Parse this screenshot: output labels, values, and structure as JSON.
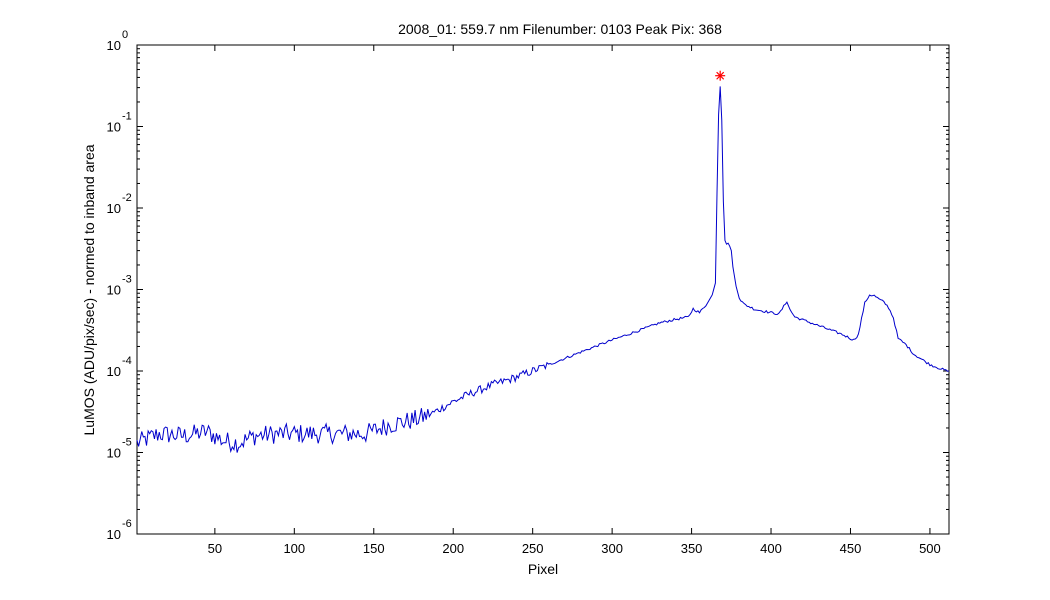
{
  "chart_data": {
    "type": "line",
    "title": "2008_01: 559.7 nm  Filenumber: 0103 Peak Pix: 368",
    "xlabel": "Pixel",
    "ylabel": "LuMOS (ADU/pix/sec) - normed to inband area",
    "xlim": [
      1,
      512
    ],
    "ylim": [
      1e-06,
      1
    ],
    "yscale": "log",
    "grid": false,
    "xticks": [
      50,
      100,
      150,
      200,
      250,
      300,
      350,
      400,
      450,
      500
    ],
    "yticks": [
      {
        "base": "10",
        "exp": "-6",
        "value": 1e-06
      },
      {
        "base": "10",
        "exp": "-5",
        "value": 1e-05
      },
      {
        "base": "10",
        "exp": "-4",
        "value": 0.0001
      },
      {
        "base": "10",
        "exp": "-3",
        "value": 0.001
      },
      {
        "base": "10",
        "exp": "-2",
        "value": 0.01
      },
      {
        "base": "10",
        "exp": "-1",
        "value": 0.1
      },
      {
        "base": "10",
        "exp": "0",
        "value": 1
      }
    ],
    "series": [
      {
        "color": "#0000cc",
        "x": [
          1,
          15,
          30,
          45,
          55,
          65,
          75,
          90,
          110,
          130,
          145,
          160,
          175,
          185,
          200,
          210,
          225,
          235,
          250,
          265,
          280,
          300,
          320,
          330,
          340,
          348,
          351,
          355,
          360,
          363,
          365,
          366,
          367,
          368,
          369,
          370,
          371,
          372,
          373,
          374,
          375,
          376,
          378,
          380,
          383,
          390,
          400,
          405,
          408,
          410,
          412,
          415,
          430,
          445,
          452,
          455,
          457,
          459,
          462,
          465,
          468,
          471,
          474,
          477,
          480,
          485,
          490,
          500,
          505,
          512
        ],
        "y": [
          1.3e-05,
          1.7e-05,
          1.6e-05,
          1.8e-05,
          1.4e-05,
          1.3e-05,
          1.6e-05,
          1.7e-05,
          1.7e-05,
          1.7e-05,
          1.7e-05,
          2.2e-05,
          2.5e-05,
          2.9e-05,
          4.2e-05,
          5.2e-05,
          6.8e-05,
          7.8e-05,
          0.0001,
          0.00013,
          0.00017,
          0.00024,
          0.00033,
          0.00039,
          0.00043,
          0.00046,
          0.00058,
          0.00052,
          0.00068,
          0.00086,
          0.0012,
          0.015,
          0.14,
          0.31,
          0.12,
          0.012,
          0.004,
          0.0036,
          0.0037,
          0.0034,
          0.003,
          0.0019,
          0.0011,
          0.00078,
          0.00066,
          0.00057,
          0.00052,
          0.0005,
          0.00062,
          0.00072,
          0.00056,
          0.00046,
          0.00036,
          0.00028,
          0.00024,
          0.00028,
          0.00044,
          0.00068,
          0.00086,
          0.00084,
          0.00076,
          0.0007,
          0.0006,
          0.00045,
          0.00025,
          0.00021,
          0.00016,
          0.00012,
          0.00011,
          9.8e-05
        ],
        "noise_until_x": 185
      }
    ],
    "peak_marker": {
      "x": 368,
      "y": 0.42,
      "symbol": "*",
      "color": "#ff0000"
    }
  }
}
